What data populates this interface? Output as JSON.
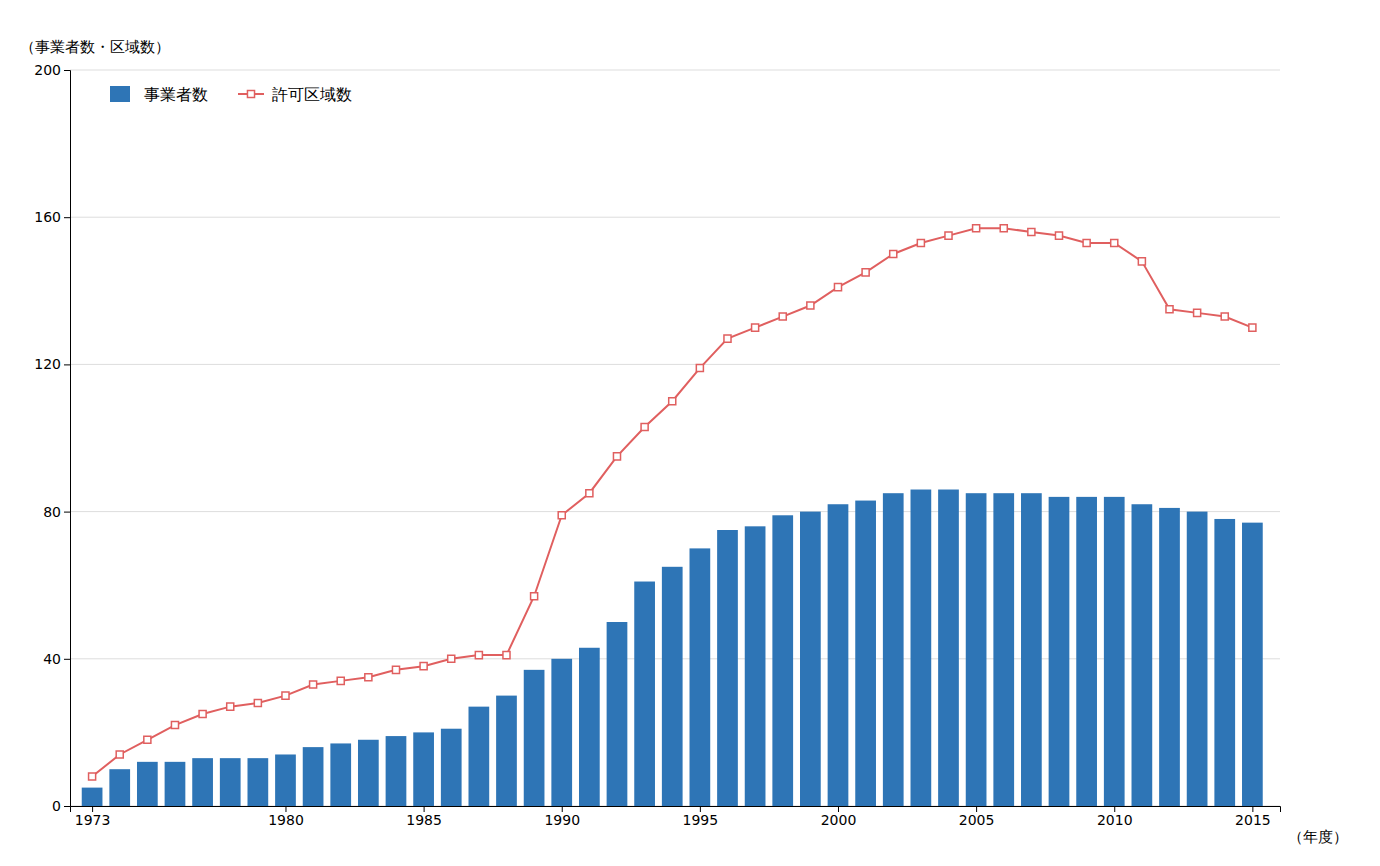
{
  "chart_data": {
    "type": "bar",
    "xlabel": "（年度）",
    "ylabel": "（事業者数・区域数）",
    "x": [
      1973,
      1974,
      1975,
      1976,
      1977,
      1978,
      1979,
      1980,
      1981,
      1982,
      1983,
      1984,
      1985,
      1986,
      1987,
      1988,
      1989,
      1990,
      1991,
      1992,
      1993,
      1994,
      1995,
      1996,
      1997,
      1998,
      1999,
      2000,
      2001,
      2002,
      2003,
      2004,
      2005,
      2006,
      2007,
      2008,
      2009,
      2010,
      2011,
      2012,
      2013,
      2014,
      2015
    ],
    "series": [
      {
        "name": "事業者数",
        "type": "bar",
        "color": "#2E75B6",
        "values": [
          5,
          10,
          12,
          12,
          13,
          13,
          13,
          14,
          16,
          17,
          18,
          19,
          20,
          21,
          27,
          30,
          37,
          40,
          43,
          50,
          61,
          65,
          70,
          75,
          76,
          79,
          80,
          82,
          83,
          85,
          86,
          86,
          85,
          85,
          85,
          84,
          84,
          84,
          82,
          81,
          80,
          78,
          77
        ]
      },
      {
        "name": "許可区域数",
        "type": "line",
        "color": "#E05F5F",
        "marker": "square",
        "values": [
          8,
          14,
          18,
          22,
          25,
          27,
          28,
          30,
          33,
          34,
          35,
          37,
          38,
          40,
          41,
          41,
          57,
          79,
          85,
          95,
          103,
          110,
          119,
          127,
          130,
          133,
          136,
          141,
          145,
          150,
          153,
          155,
          157,
          157,
          156,
          155,
          153,
          153,
          148,
          135,
          134,
          133,
          130
        ]
      }
    ],
    "xlim": [
      1972.2,
      2016.0
    ],
    "xticks": [
      1973,
      1980,
      1985,
      1990,
      1995,
      2000,
      2005,
      2010,
      2015
    ],
    "ylim": [
      0,
      200
    ],
    "yticks": [
      0,
      40,
      80,
      120,
      160,
      200
    ],
    "grid": true,
    "legend": "upper left"
  }
}
